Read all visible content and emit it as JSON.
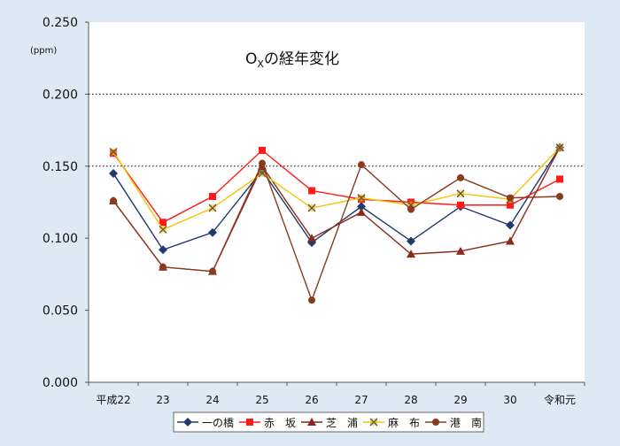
{
  "colors": {
    "background": "#dde9f4",
    "plot_background": "#ffffff",
    "grid": "#000000"
  },
  "chart_data": {
    "type": "line",
    "title_main": "O",
    "title_sub": "X",
    "title_rest": "の経年変化",
    "unit_label": "(ppm)",
    "categories": [
      "平成22",
      "23",
      "24",
      "25",
      "26",
      "27",
      "28",
      "29",
      "30",
      "令和元"
    ],
    "ylim": [
      0,
      0.25
    ],
    "yticks": [
      "0.000",
      "0.050",
      "0.100",
      "0.150",
      "0.200",
      "0.250"
    ],
    "grid": "dotted horizontal at 0.150 and 0.200",
    "legend_position": "bottom",
    "series": [
      {
        "name": "一の橋",
        "color": "#1f3a6e",
        "marker": "diamond",
        "values": [
          0.145,
          0.092,
          0.104,
          0.147,
          0.097,
          0.122,
          0.098,
          0.122,
          0.109,
          0.163
        ]
      },
      {
        "name": "赤　坂",
        "color": "#ff1a1a",
        "marker": "square",
        "values": [
          0.159,
          0.111,
          0.129,
          0.161,
          0.133,
          0.127,
          0.125,
          0.123,
          0.123,
          0.141
        ]
      },
      {
        "name": "芝　浦",
        "color": "#8b2a1a",
        "marker": "triangle",
        "values": [
          0.126,
          0.08,
          0.077,
          0.15,
          0.1,
          0.118,
          0.089,
          0.091,
          0.098,
          0.163
        ]
      },
      {
        "name": "麻　布",
        "color": "#f5c400",
        "marker": "x",
        "values": [
          0.16,
          0.106,
          0.121,
          0.145,
          0.121,
          0.128,
          0.123,
          0.131,
          0.127,
          0.163
        ]
      },
      {
        "name": "港　南",
        "color": "#8b3a1e",
        "marker": "circle",
        "values": [
          0.126,
          0.08,
          0.077,
          0.152,
          0.057,
          0.151,
          0.12,
          0.142,
          0.128,
          0.129
        ]
      }
    ]
  }
}
